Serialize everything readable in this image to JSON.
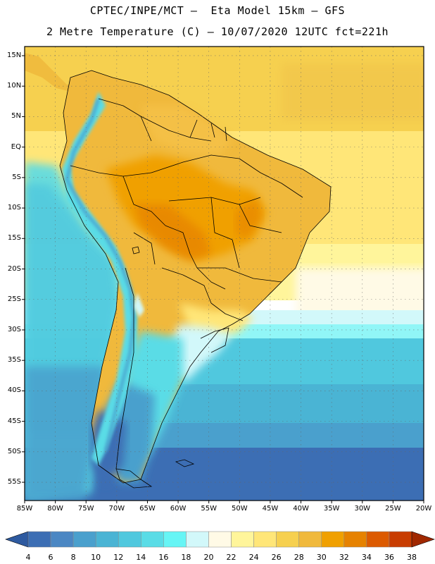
{
  "header": {
    "line1": "CPTEC/INPE/MCT –  Eta Model 15km – GFS",
    "line2": "2 Metre Temperature (C) – 10/07/2020 12UTC fct=221h"
  },
  "map": {
    "lat_labels": [
      "15N",
      "10N",
      "5N",
      "EQ",
      "5S",
      "10S",
      "15S",
      "20S",
      "25S",
      "30S",
      "35S",
      "40S",
      "45S",
      "50S",
      "55S"
    ],
    "lon_labels": [
      "85W",
      "80W",
      "75W",
      "70W",
      "65W",
      "60W",
      "55W",
      "50W",
      "45W",
      "40W",
      "35W",
      "30W",
      "25W",
      "20W"
    ],
    "lon_range": [
      -85,
      -20
    ],
    "lat_range": [
      -58,
      16.5
    ]
  },
  "colorbar": {
    "labels": [
      "4",
      "6",
      "8",
      "10",
      "12",
      "14",
      "16",
      "18",
      "20",
      "22",
      "24",
      "26",
      "28",
      "30",
      "32",
      "34",
      "36",
      "38"
    ],
    "colors": [
      "#3c6eb4",
      "#4b87c3",
      "#4aa0cd",
      "#4ab4d4",
      "#50c8de",
      "#5adce6",
      "#66f5f5",
      "#d2f8fa",
      "#fffae6",
      "#fff59b",
      "#ffe678",
      "#f6d04f",
      "#f0b93c",
      "#f0a000",
      "#e68200",
      "#dc5a00",
      "#c83c00",
      "#a02800"
    ],
    "under_color": "#2e5aa0",
    "over_color": "#a02800"
  }
}
